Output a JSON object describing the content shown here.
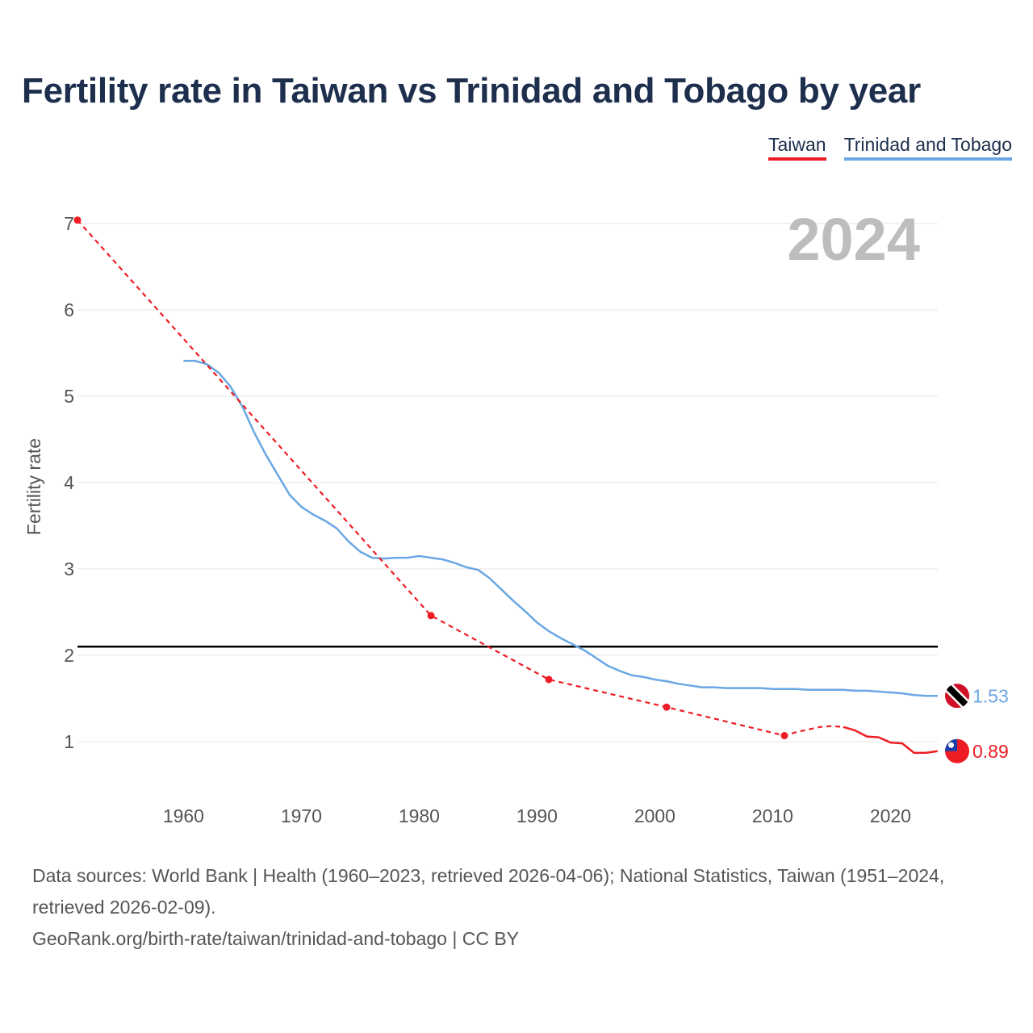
{
  "chart_data": {
    "type": "line",
    "title": "Fertility rate in Taiwan vs Trinidad and Tobago by year",
    "xlabel": "",
    "ylabel": "Fertility rate",
    "xlim": [
      1951,
      2024
    ],
    "ylim": [
      0.4,
      7.05
    ],
    "xticks": [
      1960,
      1970,
      1980,
      1990,
      2000,
      2010,
      2020
    ],
    "yticks": [
      1,
      2,
      3,
      4,
      5,
      6,
      7
    ],
    "current_year": "2024",
    "reference_line": {
      "value": 2.1,
      "color": "#000000"
    },
    "legend_position": "top-right",
    "series": [
      {
        "name": "Taiwan",
        "color": "#ee1c25",
        "end_label": "0.89",
        "points": [
          [
            1951,
            7.04
          ],
          [
            1981,
            2.46
          ],
          [
            1991,
            1.72
          ],
          [
            2001,
            1.4
          ],
          [
            2011,
            1.07
          ],
          [
            2012,
            1.11
          ],
          [
            2013,
            1.14
          ],
          [
            2014,
            1.17
          ],
          [
            2015,
            1.18
          ],
          [
            2016,
            1.17
          ],
          [
            2017,
            1.13
          ],
          [
            2018,
            1.06
          ],
          [
            2019,
            1.05
          ],
          [
            2020,
            0.99
          ],
          [
            2021,
            0.98
          ],
          [
            2022,
            0.87
          ],
          [
            2023,
            0.87
          ],
          [
            2024,
            0.89
          ]
        ]
      },
      {
        "name": "Trinidad and Tobago",
        "color": "#6aa7e4",
        "end_label": "1.53",
        "points": [
          [
            1960,
            5.41
          ],
          [
            1961,
            5.41
          ],
          [
            1962,
            5.37
          ],
          [
            1963,
            5.27
          ],
          [
            1964,
            5.11
          ],
          [
            1965,
            4.88
          ],
          [
            1966,
            4.58
          ],
          [
            1967,
            4.32
          ],
          [
            1968,
            4.09
          ],
          [
            1969,
            3.86
          ],
          [
            1970,
            3.72
          ],
          [
            1971,
            3.63
          ],
          [
            1972,
            3.56
          ],
          [
            1973,
            3.47
          ],
          [
            1974,
            3.32
          ],
          [
            1975,
            3.2
          ],
          [
            1976,
            3.13
          ],
          [
            1977,
            3.12
          ],
          [
            1978,
            3.13
          ],
          [
            1979,
            3.13
          ],
          [
            1980,
            3.15
          ],
          [
            1981,
            3.13
          ],
          [
            1982,
            3.11
          ],
          [
            1983,
            3.07
          ],
          [
            1984,
            3.02
          ],
          [
            1985,
            2.99
          ],
          [
            1986,
            2.89
          ],
          [
            1987,
            2.76
          ],
          [
            1988,
            2.63
          ],
          [
            1989,
            2.51
          ],
          [
            1990,
            2.38
          ],
          [
            1991,
            2.28
          ],
          [
            1992,
            2.2
          ],
          [
            1993,
            2.13
          ],
          [
            1994,
            2.06
          ],
          [
            1995,
            1.97
          ],
          [
            1996,
            1.88
          ],
          [
            1997,
            1.82
          ],
          [
            1998,
            1.77
          ],
          [
            1999,
            1.75
          ],
          [
            2000,
            1.72
          ],
          [
            2001,
            1.7
          ],
          [
            2002,
            1.67
          ],
          [
            2003,
            1.65
          ],
          [
            2004,
            1.63
          ],
          [
            2005,
            1.63
          ],
          [
            2006,
            1.62
          ],
          [
            2007,
            1.62
          ],
          [
            2008,
            1.62
          ],
          [
            2009,
            1.62
          ],
          [
            2010,
            1.61
          ],
          [
            2011,
            1.61
          ],
          [
            2012,
            1.61
          ],
          [
            2013,
            1.6
          ],
          [
            2014,
            1.6
          ],
          [
            2015,
            1.6
          ],
          [
            2016,
            1.6
          ],
          [
            2017,
            1.59
          ],
          [
            2018,
            1.59
          ],
          [
            2019,
            1.58
          ],
          [
            2020,
            1.57
          ],
          [
            2021,
            1.56
          ],
          [
            2022,
            1.54
          ],
          [
            2023,
            1.53
          ],
          [
            2024,
            1.53
          ]
        ]
      }
    ],
    "taiwan_census_markers": [
      1951,
      1981,
      1991,
      2001,
      2011
    ]
  },
  "footer": {
    "sources": "Data sources: World Bank | Health (1960–2023, retrieved 2026-04-06); National Statistics, Taiwan (1951–2024, retrieved 2026-02-09).",
    "link": "GeoRank.org/birth-rate/taiwan/trinidad-and-tobago | CC BY"
  },
  "flags": {
    "taiwan": "taiwan-flag-icon",
    "trinidad": "trinidad-flag-icon"
  }
}
